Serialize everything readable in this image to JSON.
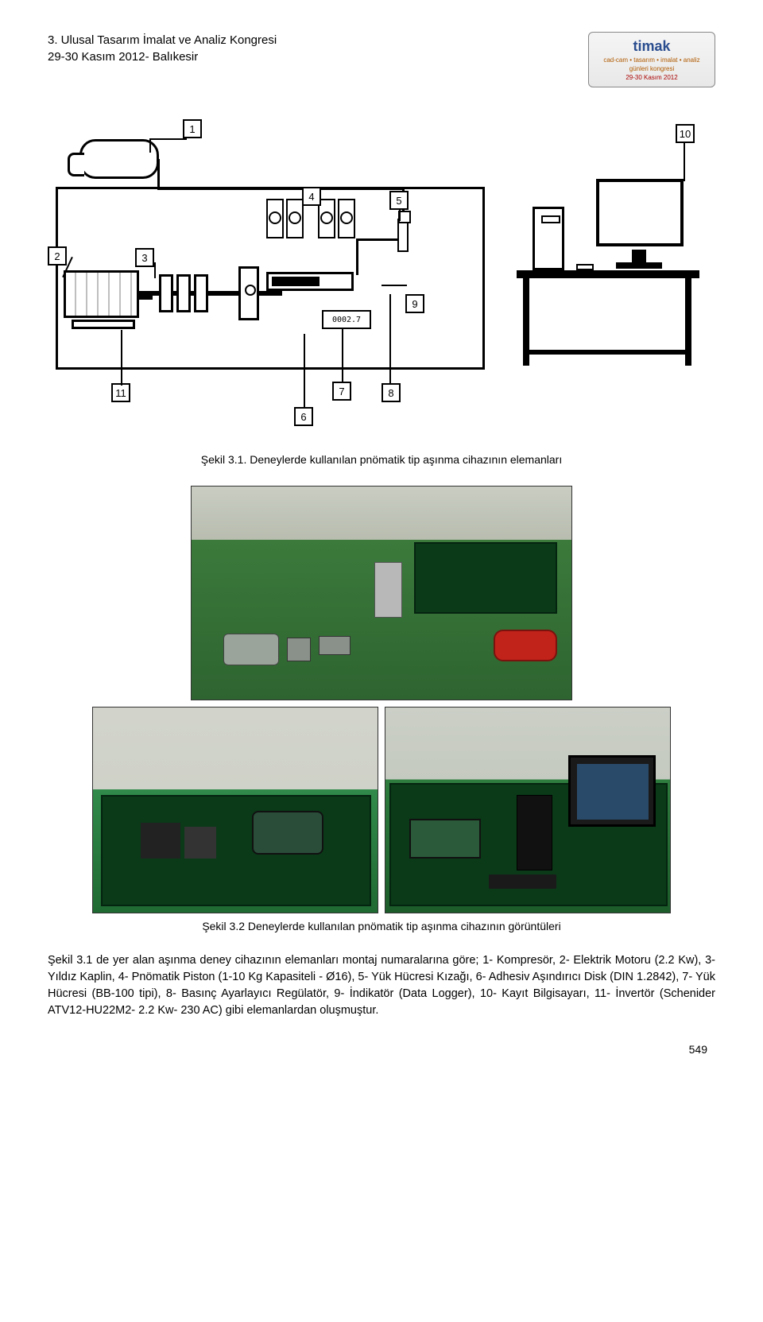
{
  "header": {
    "line1": "3. Ulusal Tasarım İmalat ve Analiz Kongresi",
    "line2": "29-30 Kasım 2012- Balıkesir"
  },
  "logo": {
    "title": "timak",
    "sub": "cad-cam • tasarım • imalat • analiz",
    "sub2": "günleri   kongresi",
    "date": "29-30 Kasım 2012"
  },
  "schematic": {
    "callouts": {
      "c1": "1",
      "c2": "2",
      "c3": "3",
      "c4": "4",
      "c5": "5",
      "c6": "6",
      "c7": "7",
      "c8": "8",
      "c9": "9",
      "c10": "10",
      "c11": "11"
    },
    "counter_display": "0002.7",
    "line_color": "#000000",
    "background": "#ffffff"
  },
  "captions": {
    "fig31": "Şekil 3.1. Deneylerde kullanılan pnömatik tip aşınma cihazının elemanları",
    "fig32": "Şekil 3.2  Deneylerde kullanılan pnömatik tip aşınma cihazının görüntüleri"
  },
  "photos": {
    "bg_wall": "#c9cdc2",
    "table_green": "#2e7d3e",
    "compressor_red": "#c1221a",
    "metal_gray": "#9aa49b",
    "dark_metal": "#222222",
    "monitor_screen": "#2a4a6a"
  },
  "paragraph": "Şekil 3.1 de yer alan aşınma deney cihazının elemanları montaj numaralarına göre; 1- Kompresör, 2- Elektrik Motoru (2.2 Kw), 3- Yıldız Kaplin, 4- Pnömatik Piston (1-10 Kg Kapasiteli - Ø16), 5- Yük Hücresi Kızağı, 6- Adhesiv Aşındırıcı Disk (DIN 1.2842), 7- Yük Hücresi (BB-100 tipi), 8- Basınç Ayarlayıcı Regülatör, 9- İndikatör (Data Logger), 10- Kayıt Bilgisayarı, 11- İnvertör (Schenider ATV12-HU22M2- 2.2 Kw- 230 AC)  gibi elemanlardan oluşmuştur.",
  "page_number": "549"
}
